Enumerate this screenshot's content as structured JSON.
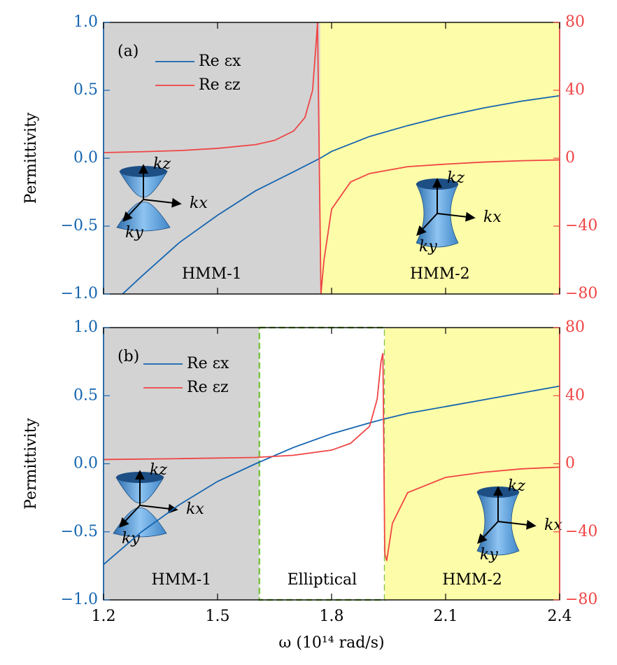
{
  "chart_data": [
    {
      "type": "line",
      "label": "(a)",
      "ylabel": "Permittivity",
      "legend": "upper left",
      "xlim": [
        1.2,
        2.4
      ],
      "xticks": [
        1.2,
        1.5,
        1.8,
        2.1,
        2.4
      ],
      "ylim": [
        -1,
        1
      ],
      "yticks": [
        {
          "value": -1,
          "label": "−1.0"
        },
        {
          "value": -0.5,
          "label": "−0.5"
        },
        {
          "value": 0,
          "label": "0.0"
        },
        {
          "value": 0.5,
          "label": "0.5"
        },
        {
          "value": 1,
          "label": "1.0"
        }
      ],
      "y2lim": [
        -80,
        80
      ],
      "y2ticks": [
        {
          "value": -80,
          "label": "−80"
        },
        {
          "value": -40,
          "label": "−40"
        },
        0,
        40,
        80
      ],
      "regions": [
        {
          "x0": 1.2,
          "x1": 1.77,
          "label": "HMM-1",
          "color": "#d3d3d3"
        },
        {
          "x0": 1.77,
          "x1": 2.4,
          "label": "HMM-2",
          "color": "#fdfca8"
        }
      ],
      "series": [
        {
          "name": "Re εx",
          "color": "#1565b0",
          "axis": "y",
          "x": [
            1.25,
            1.3,
            1.4,
            1.5,
            1.6,
            1.7,
            1.77,
            1.8,
            1.9,
            2.0,
            2.1,
            2.2,
            2.3,
            2.4
          ],
          "values": [
            -1.0,
            -0.87,
            -0.62,
            -0.42,
            -0.24,
            -0.1,
            0.0,
            0.05,
            0.16,
            0.24,
            0.31,
            0.37,
            0.42,
            0.46
          ]
        },
        {
          "name": "Re εz",
          "color": "#f04545",
          "axis": "y2",
          "x": [
            1.2,
            1.3,
            1.4,
            1.5,
            1.6,
            1.65,
            1.7,
            1.73,
            1.75,
            1.76,
            1.763,
            1.772,
            1.78,
            1.8,
            1.85,
            1.9,
            2.0,
            2.1,
            2.2,
            2.3,
            2.4
          ],
          "values": [
            3.3,
            3.8,
            4.5,
            5.8,
            8,
            10.5,
            16,
            24,
            40,
            70,
            80,
            -80,
            -60,
            -30,
            -14,
            -9,
            -5,
            -3.5,
            -2.3,
            -1.5,
            -1.0
          ]
        }
      ],
      "insets": [
        [
          "kz",
          "kx",
          "ky"
        ],
        [
          "kz",
          "kx",
          "ky"
        ]
      ]
    },
    {
      "type": "line",
      "label": "(b)",
      "ylabel": "Permittivity",
      "xlabel": "ω (10¹⁴ rad/s)",
      "legend": "upper left",
      "xlim": [
        1.2,
        2.4
      ],
      "xticks": [
        1.2,
        1.5,
        1.8,
        2.1,
        2.4
      ],
      "ylim": [
        -1,
        1
      ],
      "yticks": [
        {
          "value": -1,
          "label": "−1.0"
        },
        {
          "value": -0.5,
          "label": "−0.5"
        },
        {
          "value": 0,
          "label": "0.0"
        },
        {
          "value": 0.5,
          "label": "0.5"
        },
        {
          "value": 1,
          "label": "1.0"
        }
      ],
      "y2lim": [
        -80,
        80
      ],
      "y2ticks": [
        {
          "value": -80,
          "label": "−80"
        },
        {
          "value": -40,
          "label": "−40"
        },
        0,
        40,
        80
      ],
      "regions": [
        {
          "x0": 1.2,
          "x1": 1.61,
          "label": "HMM-1",
          "color": "#d3d3d3"
        },
        {
          "x0": 1.61,
          "x1": 1.94,
          "label": "Elliptical",
          "color": "#ffffff",
          "border_color": "#7cc444"
        },
        {
          "x0": 1.94,
          "x1": 2.4,
          "label": "HMM-2",
          "color": "#fdfca8"
        }
      ],
      "series": [
        {
          "name": "Re εx",
          "color": "#1565b0",
          "axis": "y",
          "x": [
            1.2,
            1.3,
            1.4,
            1.5,
            1.6,
            1.7,
            1.8,
            1.9,
            1.94,
            2.0,
            2.1,
            2.2,
            2.3,
            2.4
          ],
          "values": [
            -0.74,
            -0.5,
            -0.3,
            -0.13,
            0.0,
            0.12,
            0.22,
            0.3,
            0.33,
            0.37,
            0.42,
            0.47,
            0.52,
            0.57
          ]
        },
        {
          "name": "Re εz",
          "color": "#f04545",
          "axis": "y2",
          "x": [
            1.2,
            1.4,
            1.6,
            1.7,
            1.8,
            1.85,
            1.9,
            1.92,
            1.93,
            1.935,
            1.94,
            1.945,
            1.96,
            2.0,
            2.1,
            2.2,
            2.3,
            2.4
          ],
          "values": [
            2.5,
            3,
            3.7,
            5,
            8,
            12,
            22,
            38,
            60,
            65,
            -53,
            -57,
            -35,
            -17,
            -8,
            -5,
            -3,
            -2
          ]
        }
      ],
      "insets": [
        [
          "kz",
          "kx",
          "ky"
        ],
        [
          "kz",
          "kx",
          "ky"
        ]
      ]
    }
  ]
}
